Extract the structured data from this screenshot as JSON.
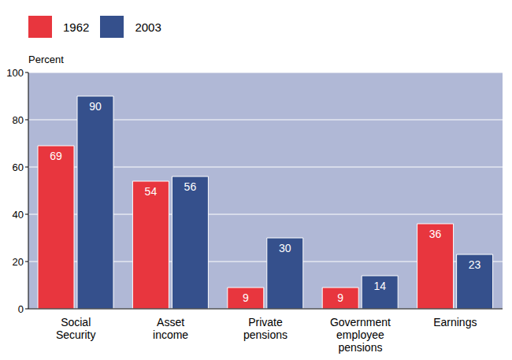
{
  "chart_data": {
    "type": "bar",
    "y_label": "Percent",
    "categories": [
      "Social Security",
      "Asset income",
      "Private pensions",
      "Government employee pensions",
      "Earnings"
    ],
    "series": [
      {
        "name": "1962",
        "color": "#e8363e",
        "values": [
          69,
          54,
          9,
          9,
          36
        ]
      },
      {
        "name": "2003",
        "color": "#35508c",
        "values": [
          90,
          56,
          30,
          14,
          23
        ]
      }
    ],
    "ylim": [
      0,
      100
    ],
    "yticks": [
      0,
      20,
      40,
      60,
      80,
      100
    ],
    "grid": true,
    "legend": "top-left",
    "data_labels": true
  }
}
